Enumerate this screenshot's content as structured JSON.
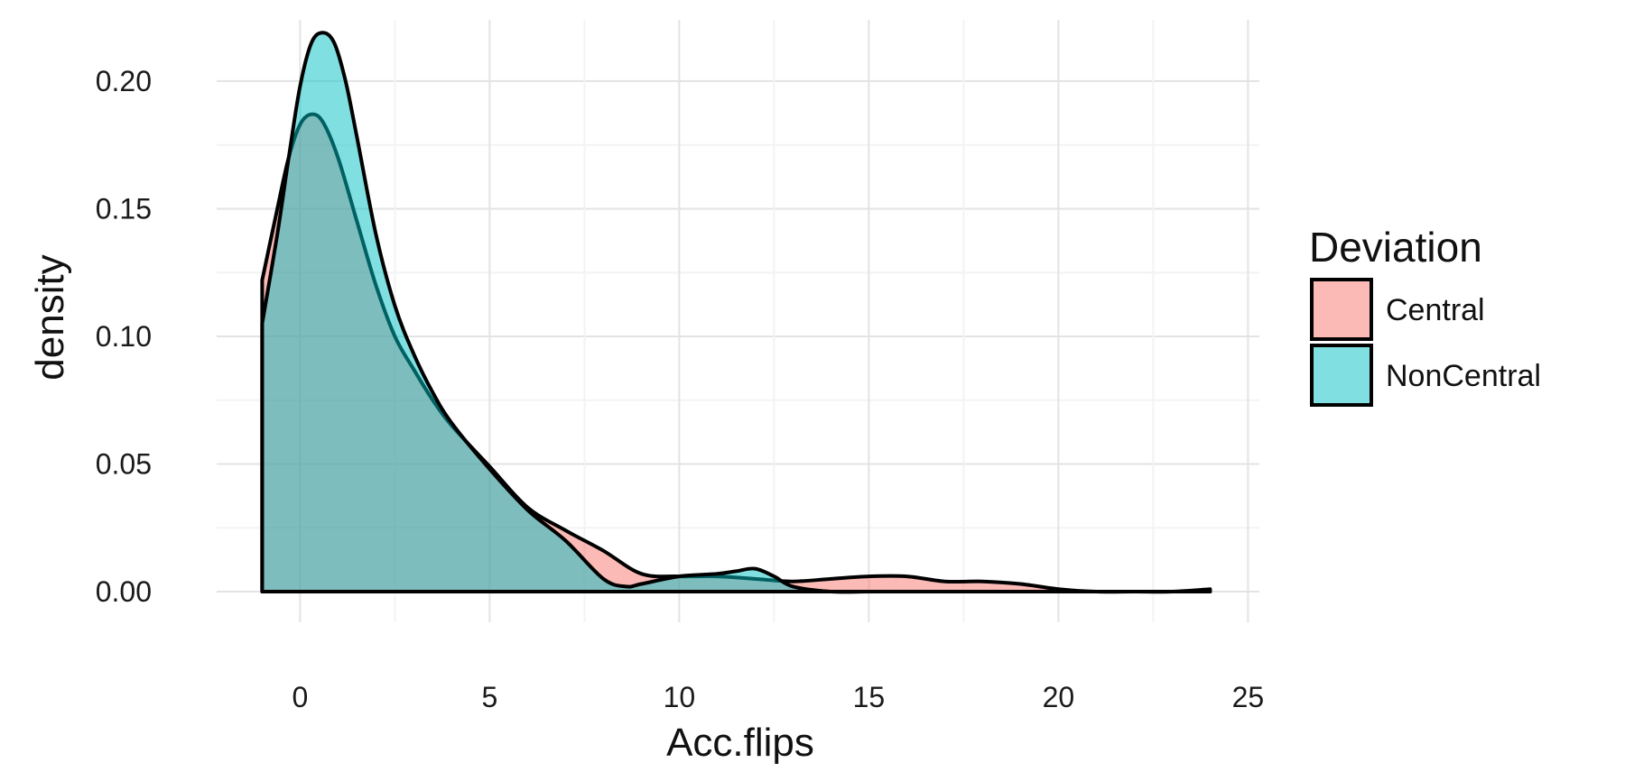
{
  "chart_data": {
    "type": "area",
    "xlabel": "Acc.flips",
    "ylabel": "density",
    "xlim": [
      -2.2,
      25.3
    ],
    "ylim": [
      -0.012,
      0.224
    ],
    "x_ticks": [
      0,
      5,
      10,
      15,
      20,
      25
    ],
    "x_tick_labels": [
      "0",
      "5",
      "10",
      "15",
      "20",
      "25"
    ],
    "y_ticks": [
      0.0,
      0.05,
      0.1,
      0.15,
      0.2
    ],
    "y_tick_labels": [
      "0.00",
      "0.05",
      "0.10",
      "0.15",
      "0.20"
    ],
    "grid": true,
    "legend": {
      "title": "Deviation",
      "position": "right"
    },
    "series": [
      {
        "name": "Central",
        "color": "#F8766D",
        "x": [
          -1,
          -0.6,
          -0.3,
          0,
          0.3,
          0.6,
          1,
          1.5,
          2,
          2.5,
          3,
          3.5,
          4,
          5,
          6,
          7,
          8,
          9,
          10,
          11,
          12,
          13,
          14,
          15,
          16,
          17,
          18,
          19,
          20,
          21,
          22,
          23,
          24
        ],
        "y": [
          0.122,
          0.15,
          0.17,
          0.183,
          0.187,
          0.184,
          0.17,
          0.145,
          0.12,
          0.1,
          0.087,
          0.075,
          0.065,
          0.049,
          0.033,
          0.024,
          0.016,
          0.007,
          0.006,
          0.006,
          0.005,
          0.004,
          0.005,
          0.006,
          0.006,
          0.004,
          0.004,
          0.003,
          0.001,
          0.0,
          0.0,
          0.0,
          0.001
        ]
      },
      {
        "name": "NonCentral",
        "color": "#00BFC4",
        "x": [
          -1,
          -0.6,
          -0.3,
          0,
          0.3,
          0.6,
          0.9,
          1.2,
          1.5,
          2,
          2.5,
          3,
          3.5,
          4,
          5,
          6,
          7,
          8,
          8.6,
          9,
          10,
          11,
          11.5,
          12,
          12.5,
          13,
          14,
          15,
          16,
          17,
          18,
          19,
          20,
          21,
          22,
          23,
          24
        ],
        "y": [
          0.105,
          0.14,
          0.17,
          0.198,
          0.215,
          0.219,
          0.215,
          0.2,
          0.178,
          0.14,
          0.112,
          0.093,
          0.078,
          0.066,
          0.048,
          0.032,
          0.02,
          0.005,
          0.002,
          0.003,
          0.006,
          0.007,
          0.008,
          0.009,
          0.006,
          0.002,
          0.0,
          0.0,
          0.0,
          0.0,
          0.0,
          0.0,
          0.0,
          0.0,
          0.0,
          0.0,
          0.0
        ]
      }
    ]
  }
}
